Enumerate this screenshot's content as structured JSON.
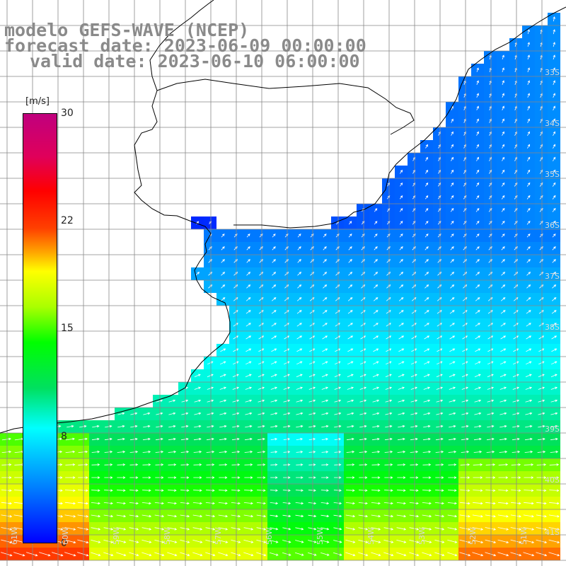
{
  "title": {
    "line1": "modelo GEFS-WAVE (NCEP)",
    "line2": "forecast date: 2023-06-09 00:00:00",
    "line3": "valid date: 2023-06-10 06:00:00"
  },
  "colorbar": {
    "unit": "[m/s]",
    "ticks": [
      "30",
      "22",
      "15",
      "8",
      "0"
    ],
    "tick_values": [
      30,
      22,
      15,
      8,
      0
    ],
    "range": [
      0,
      30
    ],
    "colors": [
      "#0000ff",
      "#0080ff",
      "#00ffff",
      "#00ff00",
      "#ffff00",
      "#ff0000",
      "#c0007e"
    ]
  },
  "lat_labels": [
    "33S",
    "34S",
    "35S",
    "36S",
    "37S",
    "38S",
    "39S",
    "40S",
    "41S"
  ],
  "lon_labels": [
    "61W",
    "60W",
    "59W",
    "58W",
    "57W",
    "56W",
    "55W",
    "54W",
    "53W",
    "52W",
    "51W"
  ],
  "colors": {
    "land": "#ffffff",
    "coastline": "#000000",
    "grid": "#888888",
    "arrows": "#ffffff",
    "title": "#8a8a8a"
  }
}
